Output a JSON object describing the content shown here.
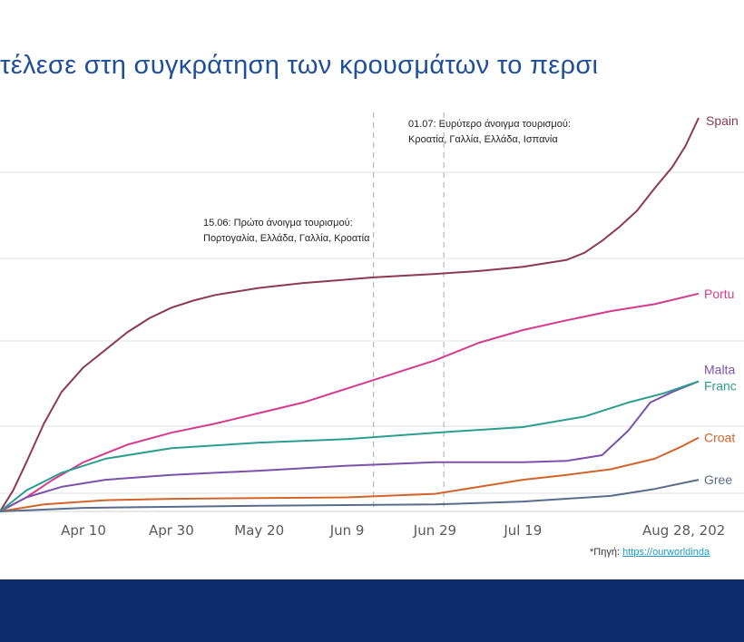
{
  "title": "τέλεσε στη συγκράτηση των κρουσμάτων το περσι",
  "source": {
    "label": "*Πηγή:",
    "link": "https://ourworldinda"
  },
  "colors": {
    "footer_bar": "#0e2b6b",
    "title": "#1f4e9a",
    "link": "#1a9cc8",
    "grid": "#e2e2e2",
    "vline": "#b9b9b9"
  },
  "chart_data": {
    "type": "line",
    "title": "",
    "xlabel": "",
    "ylabel": "",
    "x_ticks": [
      "Apr 10",
      "Apr 30",
      "May 20",
      "Jun 9",
      "Jun 29",
      "Jul 19",
      "Aug 28, 202"
    ],
    "x_range": [
      "2020-03-22",
      "2020-08-28"
    ],
    "grid": "horizontal",
    "annotations": [
      {
        "date": "2020-06-15",
        "lines": [
          "15.06: Πρώτο άνοιγμα τουρισμού:",
          "Πορτογαλία, Ελλάδα, Γαλλία, Κροατία"
        ]
      },
      {
        "date": "2020-07-01",
        "lines": [
          "01.07: Ευρύτερο άνοιγμα τουρισμού:",
          "Κροατία, Γαλλία, Ελλάδα, Ισπανία"
        ]
      }
    ],
    "series": [
      {
        "name": "Spain",
        "label": "Spain",
        "color": "#8b3a52",
        "points": [
          [
            "2020-03-22",
            0
          ],
          [
            "2020-03-25",
            30
          ],
          [
            "2020-03-28",
            70
          ],
          [
            "2020-04-01",
            125
          ],
          [
            "2020-04-05",
            170
          ],
          [
            "2020-04-10",
            205
          ],
          [
            "2020-04-15",
            230
          ],
          [
            "2020-04-20",
            255
          ],
          [
            "2020-04-25",
            275
          ],
          [
            "2020-04-30",
            290
          ],
          [
            "2020-05-05",
            300
          ],
          [
            "2020-05-10",
            308
          ],
          [
            "2020-05-20",
            318
          ],
          [
            "2020-05-30",
            325
          ],
          [
            "2020-06-09",
            330
          ],
          [
            "2020-06-15",
            333
          ],
          [
            "2020-06-29",
            338
          ],
          [
            "2020-07-09",
            342
          ],
          [
            "2020-07-19",
            348
          ],
          [
            "2020-07-29",
            358
          ],
          [
            "2020-08-02",
            368
          ],
          [
            "2020-08-06",
            385
          ],
          [
            "2020-08-10",
            405
          ],
          [
            "2020-08-14",
            428
          ],
          [
            "2020-08-18",
            460
          ],
          [
            "2020-08-22",
            490
          ],
          [
            "2020-08-25",
            520
          ],
          [
            "2020-08-28",
            560
          ]
        ]
      },
      {
        "name": "Portugal",
        "label": "Portu",
        "color": "#d63a8e",
        "points": [
          [
            "2020-03-22",
            0
          ],
          [
            "2020-03-28",
            20
          ],
          [
            "2020-04-03",
            45
          ],
          [
            "2020-04-10",
            70
          ],
          [
            "2020-04-20",
            95
          ],
          [
            "2020-04-30",
            112
          ],
          [
            "2020-05-10",
            125
          ],
          [
            "2020-05-20",
            140
          ],
          [
            "2020-05-30",
            155
          ],
          [
            "2020-06-09",
            175
          ],
          [
            "2020-06-19",
            195
          ],
          [
            "2020-06-29",
            215
          ],
          [
            "2020-07-09",
            240
          ],
          [
            "2020-07-19",
            258
          ],
          [
            "2020-07-29",
            272
          ],
          [
            "2020-08-08",
            285
          ],
          [
            "2020-08-18",
            295
          ],
          [
            "2020-08-28",
            310
          ]
        ]
      },
      {
        "name": "Malta",
        "label": "Malta",
        "color": "#7b52ab",
        "points": [
          [
            "2020-03-22",
            0
          ],
          [
            "2020-03-28",
            20
          ],
          [
            "2020-04-05",
            35
          ],
          [
            "2020-04-15",
            45
          ],
          [
            "2020-04-30",
            52
          ],
          [
            "2020-05-20",
            58
          ],
          [
            "2020-06-09",
            65
          ],
          [
            "2020-06-29",
            70
          ],
          [
            "2020-07-19",
            70
          ],
          [
            "2020-07-29",
            72
          ],
          [
            "2020-08-06",
            80
          ],
          [
            "2020-08-12",
            115
          ],
          [
            "2020-08-17",
            155
          ],
          [
            "2020-08-22",
            170
          ],
          [
            "2020-08-28",
            185
          ]
        ]
      },
      {
        "name": "France",
        "label": "Franc",
        "color": "#2a9d8f",
        "points": [
          [
            "2020-03-22",
            0
          ],
          [
            "2020-03-28",
            30
          ],
          [
            "2020-04-05",
            55
          ],
          [
            "2020-04-15",
            75
          ],
          [
            "2020-04-30",
            90
          ],
          [
            "2020-05-20",
            98
          ],
          [
            "2020-06-09",
            103
          ],
          [
            "2020-06-29",
            112
          ],
          [
            "2020-07-19",
            120
          ],
          [
            "2020-08-02",
            135
          ],
          [
            "2020-08-12",
            155
          ],
          [
            "2020-08-20",
            168
          ],
          [
            "2020-08-28",
            185
          ]
        ]
      },
      {
        "name": "Croatia",
        "label": "Croat",
        "color": "#d2642a",
        "points": [
          [
            "2020-03-22",
            0
          ],
          [
            "2020-04-01",
            10
          ],
          [
            "2020-04-15",
            16
          ],
          [
            "2020-04-30",
            18
          ],
          [
            "2020-06-09",
            20
          ],
          [
            "2020-06-29",
            25
          ],
          [
            "2020-07-09",
            35
          ],
          [
            "2020-07-19",
            45
          ],
          [
            "2020-07-29",
            52
          ],
          [
            "2020-08-08",
            60
          ],
          [
            "2020-08-18",
            75
          ],
          [
            "2020-08-24",
            92
          ],
          [
            "2020-08-28",
            105
          ]
        ]
      },
      {
        "name": "Greece",
        "label": "Gree",
        "color": "#5a6b8c",
        "points": [
          [
            "2020-03-22",
            0
          ],
          [
            "2020-04-10",
            5
          ],
          [
            "2020-05-20",
            8
          ],
          [
            "2020-06-09",
            9
          ],
          [
            "2020-06-29",
            10
          ],
          [
            "2020-07-19",
            14
          ],
          [
            "2020-08-08",
            22
          ],
          [
            "2020-08-18",
            32
          ],
          [
            "2020-08-28",
            45
          ]
        ]
      }
    ]
  }
}
